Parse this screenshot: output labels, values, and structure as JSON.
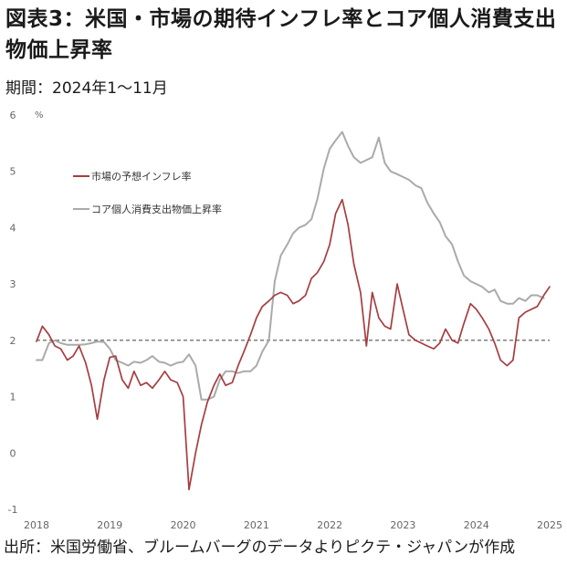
{
  "title": "図表3：米国・市場の期待インフレ率とコア個人消費支出物価上昇率",
  "subtitle": "期間：2024年1～11月",
  "source": "出所：米国労働省、ブルームバーグのデータよりピクテ・ジャパンが作成",
  "chart_data": {
    "type": "line",
    "unit_label": "%",
    "ylim": [
      -1,
      6
    ],
    "yticks": [
      "6",
      "5",
      "4",
      "3",
      "2",
      "1",
      "0",
      "-1"
    ],
    "xlim": [
      2018.0,
      2025.0
    ],
    "xticks": [
      "2018",
      "2019",
      "2020",
      "2021",
      "2022",
      "2023",
      "2024",
      "2025"
    ],
    "reference_line": 2,
    "legend_position": "upper-left",
    "colors": {
      "market": "#a63d40",
      "core_pce": "#aaaaaa",
      "reference": "#555555"
    },
    "series": [
      {
        "name": "市場の予想インフレ率",
        "color": "#a63d40",
        "x": [
          2018.0,
          2018.08,
          2018.17,
          2018.25,
          2018.33,
          2018.42,
          2018.5,
          2018.58,
          2018.67,
          2018.75,
          2018.83,
          2018.92,
          2019.0,
          2019.08,
          2019.17,
          2019.25,
          2019.33,
          2019.42,
          2019.5,
          2019.58,
          2019.67,
          2019.75,
          2019.83,
          2019.92,
          2020.0,
          2020.08,
          2020.17,
          2020.25,
          2020.33,
          2020.42,
          2020.5,
          2020.58,
          2020.67,
          2020.75,
          2020.83,
          2020.92,
          2021.0,
          2021.08,
          2021.17,
          2021.25,
          2021.33,
          2021.42,
          2021.5,
          2021.58,
          2021.67,
          2021.75,
          2021.83,
          2021.92,
          2022.0,
          2022.08,
          2022.17,
          2022.25,
          2022.33,
          2022.42,
          2022.5,
          2022.58,
          2022.67,
          2022.75,
          2022.83,
          2022.92,
          2023.0,
          2023.08,
          2023.17,
          2023.25,
          2023.33,
          2023.42,
          2023.5,
          2023.58,
          2023.67,
          2023.75,
          2023.83,
          2023.92,
          2024.0,
          2024.08,
          2024.17,
          2024.25,
          2024.33,
          2024.42,
          2024.5,
          2024.58,
          2024.67,
          2024.75,
          2024.83,
          2024.92,
          2025.0
        ],
        "y": [
          1.98,
          2.25,
          2.1,
          1.9,
          1.85,
          1.65,
          1.72,
          1.9,
          1.6,
          1.2,
          0.6,
          1.3,
          1.7,
          1.72,
          1.3,
          1.15,
          1.45,
          1.2,
          1.25,
          1.15,
          1.3,
          1.45,
          1.3,
          1.25,
          1.0,
          -0.65,
          0.0,
          0.5,
          0.9,
          1.2,
          1.4,
          1.2,
          1.25,
          1.55,
          1.8,
          2.1,
          2.4,
          2.6,
          2.7,
          2.8,
          2.85,
          2.8,
          2.65,
          2.7,
          2.8,
          3.1,
          3.2,
          3.4,
          3.7,
          4.25,
          4.5,
          4.05,
          3.35,
          2.85,
          1.9,
          2.85,
          2.4,
          2.25,
          2.2,
          3.0,
          2.55,
          2.1,
          2.0,
          1.95,
          1.9,
          1.85,
          1.95,
          2.2,
          2.0,
          1.95,
          2.3,
          2.65,
          2.55,
          2.4,
          2.2,
          1.95,
          1.65,
          1.55,
          1.65,
          2.4,
          2.5,
          2.55,
          2.6,
          2.8,
          2.95
        ]
      },
      {
        "name": "コア個人消費支出物価上昇率",
        "color": "#aaaaaa",
        "x": [
          2018.0,
          2018.08,
          2018.17,
          2018.25,
          2018.33,
          2018.42,
          2018.5,
          2018.58,
          2018.67,
          2018.75,
          2018.83,
          2018.92,
          2019.0,
          2019.08,
          2019.17,
          2019.25,
          2019.33,
          2019.42,
          2019.5,
          2019.58,
          2019.67,
          2019.75,
          2019.83,
          2019.92,
          2020.0,
          2020.08,
          2020.17,
          2020.25,
          2020.33,
          2020.42,
          2020.5,
          2020.58,
          2020.67,
          2020.75,
          2020.83,
          2020.92,
          2021.0,
          2021.08,
          2021.17,
          2021.25,
          2021.33,
          2021.42,
          2021.5,
          2021.58,
          2021.67,
          2021.75,
          2021.83,
          2021.92,
          2022.0,
          2022.08,
          2022.17,
          2022.25,
          2022.33,
          2022.42,
          2022.5,
          2022.58,
          2022.67,
          2022.75,
          2022.83,
          2022.92,
          2023.0,
          2023.08,
          2023.17,
          2023.25,
          2023.33,
          2023.42,
          2023.5,
          2023.58,
          2023.67,
          2023.75,
          2023.83,
          2023.92,
          2024.0,
          2024.08,
          2024.17,
          2024.25,
          2024.33,
          2024.42,
          2024.5,
          2024.58,
          2024.67,
          2024.75,
          2024.83,
          2024.92
        ],
        "y": [
          1.65,
          1.65,
          1.95,
          2.0,
          1.95,
          1.92,
          1.92,
          1.92,
          1.93,
          1.95,
          1.98,
          1.97,
          1.85,
          1.65,
          1.6,
          1.55,
          1.62,
          1.6,
          1.65,
          1.72,
          1.62,
          1.6,
          1.55,
          1.6,
          1.62,
          1.75,
          1.55,
          0.95,
          0.95,
          1.0,
          1.3,
          1.45,
          1.45,
          1.42,
          1.45,
          1.45,
          1.55,
          1.8,
          2.0,
          3.05,
          3.5,
          3.7,
          3.9,
          4.0,
          4.05,
          4.15,
          4.5,
          5.05,
          5.4,
          5.55,
          5.7,
          5.45,
          5.25,
          5.15,
          5.2,
          5.25,
          5.6,
          5.15,
          5.0,
          4.95,
          4.9,
          4.85,
          4.75,
          4.7,
          4.45,
          4.25,
          4.1,
          3.85,
          3.7,
          3.4,
          3.15,
          3.05,
          3.0,
          2.95,
          2.85,
          2.9,
          2.7,
          2.65,
          2.65,
          2.75,
          2.7,
          2.8,
          2.8,
          2.75
        ]
      }
    ]
  }
}
